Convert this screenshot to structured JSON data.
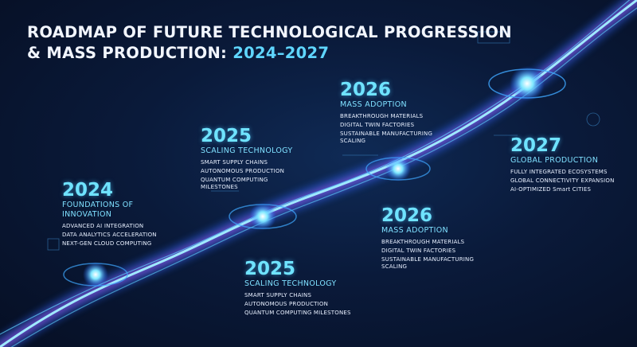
{
  "header": {
    "title_line1": "ROADMAP OF FUTURE TECHNOLOGICAL PROGRESSION",
    "title_line2": "& MASS PRODUCTION: ",
    "title_years": "2024–2027"
  },
  "milestones": [
    {
      "year": "2024",
      "heading": "FOUNDATIONS OF INNOVATION",
      "items": [
        "ADVANCED AI INTEGRATION",
        "DATA ANALYTICS ACCELERATION",
        "NEXT-GEN CLOUD COMPUTING"
      ]
    },
    {
      "year": "2025",
      "heading": "SCALING TECHNOLOGY",
      "items": [
        "SMART SUPPLY CHAINS",
        "AUTONOMOUS PRODUCTION",
        "QUANTUM COMPUTING MILESTONES"
      ]
    },
    {
      "year": "2025",
      "heading": "SCALING TECHNOLOGY",
      "items": [
        "SMART SUPPLY CHAINS",
        "AUTONOMOUS PRODUCTION",
        "QUANTUM COMPUTING MILESTONES"
      ]
    },
    {
      "year": "2026",
      "heading": "MASS ADOPTION",
      "items": [
        "BREAKTHROUGH MATERIALS",
        "DIGITAL TWIN FACTORIES",
        "SUSTAINABLE MANUFACTURING SCALING"
      ]
    },
    {
      "year": "2026",
      "heading": "MASS ADOPTION",
      "items": [
        "BREAKTHROUGH MATERIALS",
        "DIGITAL TWIN FACTORIES",
        "SUSTAINABLE MANUFACTURING SCALING"
      ]
    },
    {
      "year": "2027",
      "heading": "GLOBAL PRODUCTION",
      "items": [
        "FULLY INTEGRATED ECOSYSTEMS",
        "GLOBAL CONNECTIVITY EXPANSION",
        "AI-OPTIMIZED Smart CITIES"
      ]
    }
  ]
}
